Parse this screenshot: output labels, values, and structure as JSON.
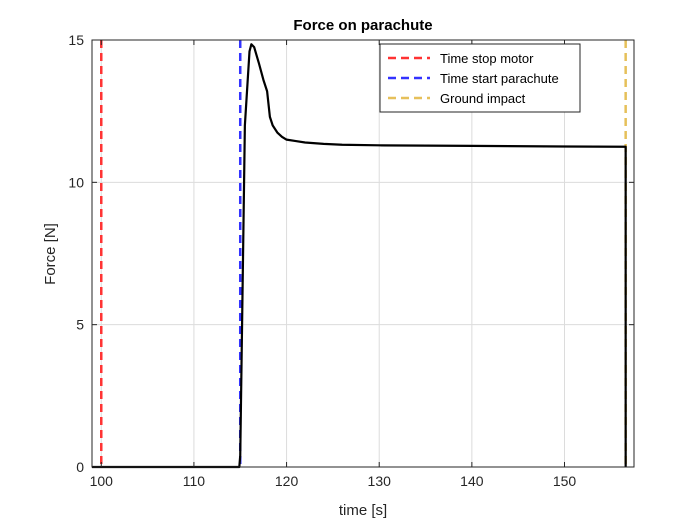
{
  "chart_data": {
    "type": "line",
    "title": "Force on parachute",
    "xlabel": "time [s]",
    "ylabel": "Force [N]",
    "xlim": [
      99,
      157.5
    ],
    "ylim": [
      0,
      15
    ],
    "xticks": [
      100,
      110,
      120,
      130,
      140,
      150
    ],
    "yticks": [
      0,
      5,
      10,
      15
    ],
    "grid": true,
    "legend_position": "top-right",
    "series": [
      {
        "color": "#000000",
        "x": [
          99,
          114.9,
          115.0,
          115.5,
          116.0,
          116.2,
          116.5,
          117.0,
          117.5,
          117.9,
          118.2,
          118.5,
          119.0,
          119.5,
          120.0,
          121.0,
          122.0,
          124.0,
          126.0,
          130.0,
          140.0,
          150.0,
          156.6,
          156.6
        ],
        "y": [
          0,
          0,
          0.4,
          12.0,
          14.6,
          14.85,
          14.75,
          14.2,
          13.6,
          13.2,
          12.3,
          12.0,
          11.75,
          11.6,
          11.5,
          11.45,
          11.4,
          11.35,
          11.32,
          11.3,
          11.28,
          11.26,
          11.25,
          0
        ]
      }
    ],
    "vlines": [
      {
        "name": "Time stop motor",
        "x": 100.0,
        "color": "#ff3333"
      },
      {
        "name": "Time start parachute",
        "x": 115.0,
        "color": "#3333ff"
      },
      {
        "name": "Ground impact",
        "x": 156.6,
        "color": "#e6c05a"
      }
    ]
  }
}
